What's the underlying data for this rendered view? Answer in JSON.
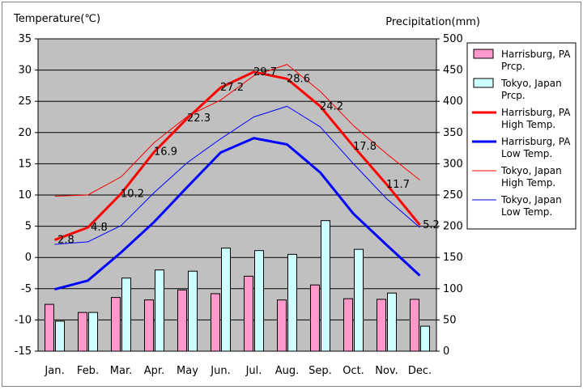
{
  "chart_data": {
    "type": "bar+line",
    "left_axis": {
      "label": "Temperature(℃)",
      "ylim": [
        -15,
        35
      ],
      "ticks": [
        "35",
        "30",
        "25",
        "20",
        "15",
        "10",
        "5",
        "0",
        "-5",
        "-10",
        "-15"
      ]
    },
    "right_axis": {
      "label": "Precipitation(mm)",
      "ylim": [
        0,
        500
      ],
      "ticks": [
        "500",
        "450",
        "400",
        "350",
        "300",
        "250",
        "200",
        "150",
        "100",
        "50",
        "0"
      ]
    },
    "categories": [
      "Jan.",
      "Feb.",
      "Mar.",
      "Apr.",
      "May",
      "Jun.",
      "Jul.",
      "Aug.",
      "Sep.",
      "Oct.",
      "Nov.",
      "Dec."
    ],
    "grid": true,
    "legend_placement": "right",
    "bar_series": [
      {
        "name": "Harrisburg, PA\nPrcp.",
        "axis": "right",
        "color": "#ff99cc",
        "values": [
          75,
          62,
          86,
          82,
          98,
          92,
          120,
          82,
          106,
          84,
          83,
          83
        ]
      },
      {
        "name": "Tokyo, Japan\nPrcp.",
        "axis": "right",
        "color": "#ccffff",
        "values": [
          48,
          62,
          117,
          130,
          128,
          165,
          161,
          155,
          209,
          163,
          93,
          40
        ]
      }
    ],
    "line_series": [
      {
        "name": "Harrisburg, PA\nHigh Temp.",
        "axis": "left",
        "color": "#ff0000",
        "width": 3,
        "values": [
          2.8,
          4.8,
          10.2,
          16.9,
          22.3,
          27.2,
          29.7,
          28.6,
          24.2,
          17.8,
          11.7,
          5.2
        ],
        "labels": [
          "2.8",
          "4.8",
          "10.2",
          "16.9",
          "22.3",
          "27.2",
          "29.7",
          "28.6",
          "24.2",
          "17.8",
          "11.7",
          "5.2"
        ]
      },
      {
        "name": "Harrisburg, PA\nLow Temp.",
        "axis": "left",
        "color": "#0000ff",
        "width": 3,
        "values": [
          -5.1,
          -3.7,
          0.8,
          5.7,
          11.3,
          16.8,
          19.1,
          18.1,
          13.6,
          7.0,
          2.0,
          -2.9
        ]
      },
      {
        "name": "Tokyo, Japan\nHigh Temp.",
        "axis": "left",
        "color": "#ff0000",
        "width": 1,
        "values": [
          9.8,
          10.0,
          12.9,
          18.4,
          22.6,
          25.2,
          29.1,
          30.9,
          26.6,
          21.1,
          16.6,
          12.4
        ]
      },
      {
        "name": "Tokyo, Japan\nLow Temp.",
        "axis": "left",
        "color": "#0000ff",
        "width": 1,
        "values": [
          2.1,
          2.5,
          5.1,
          10.4,
          15.2,
          19.0,
          22.5,
          24.2,
          20.9,
          15.0,
          9.4,
          4.8
        ]
      }
    ]
  }
}
